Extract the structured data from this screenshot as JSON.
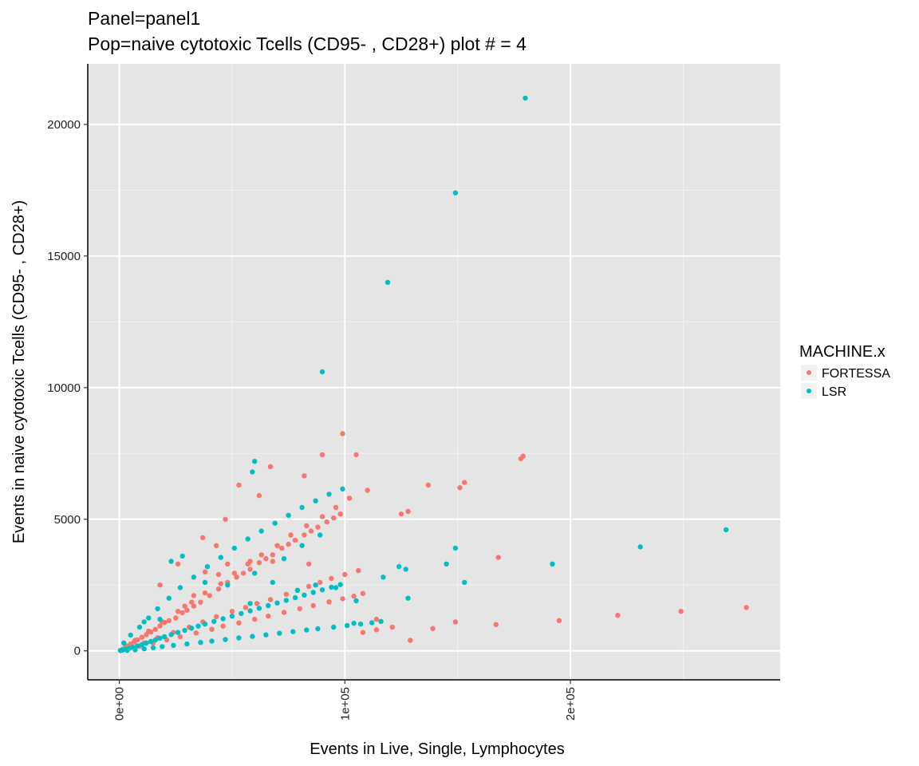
{
  "chart_data": {
    "type": "scatter",
    "title": "Panel=panel1",
    "subtitle": "Pop=naive cytotoxic Tcells (CD95- , CD28+) plot # = 4",
    "xlabel": "Events in Live, Single, Lymphocytes",
    "ylabel": "Events in naive cytotoxic Tcells (CD95- , CD28+)",
    "xlim": [
      -14000,
      293000
    ],
    "ylim": [
      -1100,
      22300
    ],
    "x_ticks": [
      0,
      100000,
      200000
    ],
    "x_tick_labels": [
      "0e+00",
      "1e+05",
      "2e+05"
    ],
    "y_ticks": [
      0,
      5000,
      10000,
      15000,
      20000
    ],
    "y_tick_labels": [
      "0",
      "5000",
      "10000",
      "15000",
      "20000"
    ],
    "grid": true,
    "legend_position": "right",
    "legend_title": "MACHINE.x",
    "series": [
      {
        "name": "FORTESSA",
        "color": "#F8766D",
        "x": [
          500,
          1500,
          2500,
          3500,
          5000,
          6500,
          8000,
          10000,
          12000,
          14000,
          16000,
          18000,
          20000,
          22000,
          25000,
          28000,
          30000,
          33000,
          36000,
          40000,
          44000,
          48000,
          52000,
          55000,
          58000,
          62000,
          65000,
          68000,
          72000,
          75000,
          78000,
          82000,
          85000,
          88000,
          92000,
          95000,
          98000,
          4000,
          9000,
          15000,
          21000,
          27000,
          34000,
          41000,
          46000,
          53000,
          60000,
          66000,
          73000,
          80000,
          86000,
          93000,
          99000,
          104000,
          108000,
          7000,
          13000,
          19000,
          26000,
          32000,
          38000,
          45000,
          51000,
          57000,
          63000,
          70000,
          76000,
          83000,
          90000,
          96000,
          102000,
          110000,
          3000,
          11000,
          17000,
          24000,
          31000,
          37000,
          43000,
          50000,
          56000,
          61000,
          67000,
          74000,
          79000,
          84000,
          89000,
          94000,
          100000,
          106000,
          99000,
          105000,
          90000,
          82000,
          67000,
          53000,
          62000,
          47000,
          37000,
          26000,
          18000,
          38000,
          43000,
          29000,
          33000,
          38000,
          44000,
          48000,
          58000,
          68000,
          84000,
          125000,
          128000,
          137000,
          151000,
          153000,
          178000,
          179000,
          114000,
          121000,
          139000,
          149000,
          167000,
          195000,
          221000,
          249000,
          278000,
          168000,
          129000,
          108000,
          114000
        ],
        "y": [
          20,
          60,
          120,
          180,
          260,
          340,
          420,
          520,
          620,
          720,
          820,
          950,
          1080,
          1150,
          1250,
          1450,
          1550,
          1700,
          1850,
          2100,
          2350,
          2600,
          2800,
          2950,
          3100,
          3350,
          3500,
          3650,
          3900,
          4050,
          4200,
          4400,
          4550,
          4700,
          4900,
          5050,
          5200,
          90,
          180,
          300,
          420,
          540,
          680,
          820,
          940,
          1060,
          1200,
          1320,
          1460,
          1600,
          1720,
          1860,
          1980,
          2080,
          2180,
          400,
          750,
          1100,
          1500,
          1850,
          2200,
          2550,
          2950,
          3300,
          3650,
          4000,
          4400,
          4750,
          5100,
          5450,
          5800,
          6100,
          160,
          300,
          500,
          700,
          900,
          1100,
          1300,
          1500,
          1650,
          1800,
          1950,
          2150,
          2300,
          2450,
          2600,
          2750,
          2900,
          3050,
          8250,
          7450,
          7450,
          6650,
          7000,
          6300,
          5900,
          5000,
          4300,
          3300,
          2500,
          3000,
          4000,
          1700,
          2100,
          2600,
          2900,
          3300,
          3400,
          3400,
          3300,
          5200,
          5300,
          6300,
          6200,
          6400,
          7300,
          7400,
          1200,
          900,
          850,
          1100,
          1000,
          1150,
          1350,
          1500,
          1650,
          3550,
          400,
          700,
          800
        ]
      },
      {
        "name": "LSR",
        "color": "#00BFC4",
        "x": [
          500,
          1500,
          3000,
          4500,
          6000,
          8000,
          10000,
          12000,
          14000,
          16000,
          18000,
          20000,
          23000,
          26000,
          29000,
          32000,
          35000,
          38000,
          42000,
          46000,
          50000,
          54000,
          58000,
          62000,
          66000,
          70000,
          74000,
          78000,
          82000,
          86000,
          90000,
          94000,
          98000,
          2000,
          5000,
          9000,
          13000,
          17000,
          22000,
          27000,
          33000,
          39000,
          45000,
          51000,
          57000,
          63000,
          69000,
          75000,
          81000,
          87000,
          93000,
          99000,
          3500,
          7000,
          11000,
          15000,
          19000,
          24000,
          30000,
          36000,
          41000,
          47000,
          53000,
          59000,
          65000,
          71000,
          77000,
          83000,
          88000,
          95000,
          101000,
          107000,
          112000,
          116000,
          124000,
          127000,
          145000,
          149000,
          153000,
          60000,
          59000,
          81000,
          73000,
          89000,
          90000,
          119000,
          149000,
          180000,
          60000,
          28000,
          23000,
          38000,
          48000,
          58000,
          68000,
          79000,
          87000,
          96000,
          18000,
          11000,
          192000,
          231000,
          269000,
          105000,
          117000,
          128000,
          104000
        ],
        "y": [
          10,
          30,
          60,
          100,
          140,
          190,
          240,
          300,
          360,
          420,
          480,
          540,
          620,
          700,
          780,
          860,
          940,
          1020,
          1120,
          1220,
          1320,
          1420,
          1520,
          1620,
          1720,
          1820,
          1920,
          2020,
          2120,
          2220,
          2320,
          2420,
          2520,
          300,
          600,
          900,
          1250,
          1600,
          2000,
          2400,
          2800,
          3200,
          3550,
          3900,
          4250,
          4550,
          4850,
          5150,
          5450,
          5700,
          5950,
          6150,
          15,
          40,
          80,
          120,
          160,
          210,
          260,
          320,
          370,
          430,
          490,
          550,
          610,
          670,
          730,
          790,
          840,
          900,
          960,
          1020,
          1070,
          1120,
          3200,
          3100,
          3300,
          3900,
          2600,
          7200,
          6800,
          4000,
          3500,
          4400,
          10600,
          14000,
          17400,
          21000,
          2950,
          3600,
          3400,
          2600,
          2500,
          1800,
          2600,
          2300,
          2500,
          2400,
          1200,
          1100,
          3300,
          3950,
          4600,
          1900,
          2800,
          2000,
          1050
        ]
      }
    ]
  }
}
